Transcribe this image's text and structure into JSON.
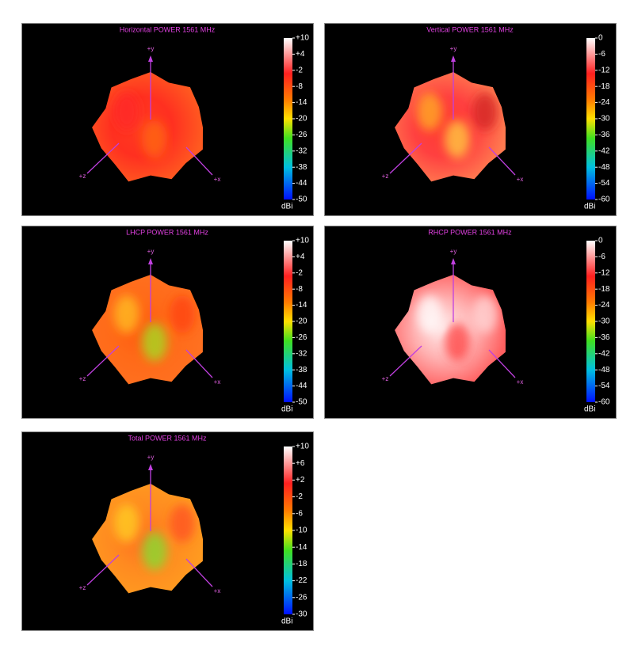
{
  "chart_data": [
    {
      "type": "surface",
      "title": "Horizontal POWER 1561  MHz",
      "colorbar_label": "dBi",
      "axis_labels": [
        "+y",
        "+z",
        "+x"
      ],
      "clim": [
        -50,
        10
      ],
      "cticks": [
        {
          "value": 10,
          "label": "+10"
        },
        {
          "value": 4,
          "label": "+4"
        },
        -2,
        -8,
        -14,
        -20,
        -26,
        -32,
        -38,
        -44,
        -50
      ]
    },
    {
      "type": "surface",
      "title": "Vertical POWER 1561  MHz",
      "colorbar_label": "dBi",
      "axis_labels": [
        "+y",
        "+z",
        "+x"
      ],
      "clim": [
        -60,
        0
      ],
      "cticks": [
        0,
        -6,
        -12,
        -18,
        -24,
        -30,
        -36,
        -42,
        -48,
        -54,
        -60
      ]
    },
    {
      "type": "surface",
      "title": "LHCP POWER 1561  MHz",
      "colorbar_label": "dBi",
      "axis_labels": [
        "+y",
        "+z",
        "+x"
      ],
      "clim": [
        -50,
        10
      ],
      "cticks": [
        {
          "value": 10,
          "label": "+10"
        },
        {
          "value": 4,
          "label": "+4"
        },
        -2,
        -8,
        -14,
        -20,
        -26,
        -32,
        -38,
        -44,
        -50
      ]
    },
    {
      "type": "surface",
      "title": "RHCP POWER 1561  MHz",
      "colorbar_label": "dBi",
      "axis_labels": [
        "+y",
        "+z",
        "+x"
      ],
      "clim": [
        -60,
        0
      ],
      "cticks": [
        0,
        -6,
        -12,
        -18,
        -24,
        -30,
        -36,
        -42,
        -48,
        -54,
        -60
      ]
    },
    {
      "type": "surface",
      "title": "Total POWER 1561  MHz",
      "colorbar_label": "dBi",
      "axis_labels": [
        "+y",
        "+z",
        "+x"
      ],
      "clim": [
        -30,
        10
      ],
      "cticks": [
        {
          "value": 10,
          "label": "+10"
        },
        {
          "value": 6,
          "label": "+6"
        },
        {
          "value": 2,
          "label": "+2"
        },
        -2,
        -6,
        -10,
        -14,
        -18,
        -22,
        -26,
        -30
      ]
    }
  ]
}
